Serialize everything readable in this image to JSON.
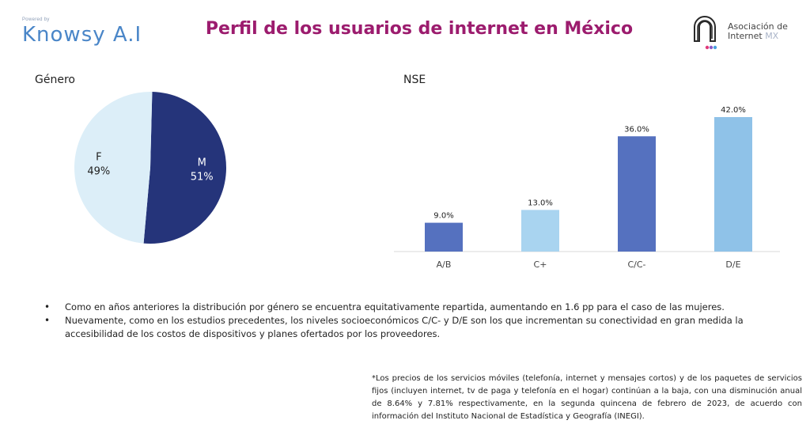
{
  "header": {
    "knowsy_powered": "Powered by",
    "knowsy_name": "Knowsy A.I",
    "title": "Perfil de los usuarios de internet en México",
    "asoc_line1": "Asociación de",
    "asoc_line2": "Internet",
    "asoc_mx": "MX"
  },
  "colors": {
    "title": "#9c1c6e",
    "pie_m": "#25347a",
    "pie_f": "#dceef8",
    "bar_dark": "#5571bf",
    "bar_light": "#a9d4f0",
    "bar_light2": "#8fc2e8"
  },
  "chart_data": [
    {
      "type": "pie",
      "title": "Género",
      "slices": [
        {
          "label": "M",
          "value": 51,
          "value_label": "51%"
        },
        {
          "label": "F",
          "value": 49,
          "value_label": "49%"
        }
      ]
    },
    {
      "type": "bar",
      "title": "NSE",
      "categories": [
        "A/B",
        "C+",
        "C/C-",
        "D/E"
      ],
      "values": [
        9.0,
        13.0,
        36.0,
        42.0
      ],
      "value_labels": [
        "9.0%",
        "13.0%",
        "36.0%",
        "42.0%"
      ],
      "ylim": [
        0,
        42
      ],
      "grid": false,
      "legend": "none"
    }
  ],
  "bullets": [
    "Como en años anteriores la distribución por género se encuentra equitativamente repartida, aumentando en 1.6 pp para el caso de las mujeres.",
    "Nuevamente, como en los estudios precedentes, los niveles socioeconómicos C/C- y D/E son los que incrementan su conectividad en gran medida la accesibilidad de los costos de dispositivos y planes ofertados por los proveedores."
  ],
  "footnote": "*Los precios de los servicios móviles (telefonía, internet y mensajes cortos) y de los paquetes de servicios fijos (incluyen internet, tv de paga y telefonía en el hogar) continúan a la baja, con una disminución anual de 8.64% y 7.81% respectivamente, en la segunda quincena de febrero de 2023, de acuerdo con información del Instituto Nacional de Estadística y Geografía (INEGI)."
}
